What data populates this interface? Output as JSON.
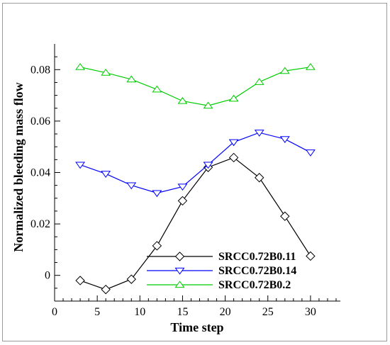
{
  "chart_data": {
    "type": "line",
    "xlabel": "Time step",
    "ylabel": "Normalized bleeding mass flow",
    "xlim": [
      0,
      33.5
    ],
    "ylim": [
      -0.01,
      0.09
    ],
    "xticks": [
      0,
      5,
      10,
      15,
      20,
      25,
      30
    ],
    "yticks": [
      0,
      0.02,
      0.04,
      0.06,
      0.08
    ],
    "ytick_labels": [
      "0",
      "0.02",
      "0.04",
      "0.06",
      "0.08"
    ],
    "grid": false,
    "legend_position": "bottom-center",
    "series": [
      {
        "name": "SRCC0.72B0.11",
        "color": "#000000",
        "marker": "diamond",
        "x": [
          3,
          6,
          9,
          12,
          15,
          18,
          21,
          24,
          27,
          30
        ],
        "y": [
          -0.002,
          -0.0055,
          -0.0015,
          0.0115,
          0.029,
          0.042,
          0.0458,
          0.038,
          0.023,
          0.0075
        ]
      },
      {
        "name": "SRCC0.72B0.14",
        "color": "#0000ff",
        "marker": "triangle-down",
        "x": [
          3,
          6,
          9,
          12,
          15,
          18,
          21,
          24,
          27,
          30
        ],
        "y": [
          0.043,
          0.0395,
          0.035,
          0.032,
          0.0345,
          0.043,
          0.0518,
          0.0555,
          0.053,
          0.0478
        ]
      },
      {
        "name": "SRCC0.72B0.2",
        "color": "#00cc00",
        "marker": "triangle-up",
        "x": [
          3,
          6,
          9,
          12,
          15,
          18,
          21,
          24,
          27,
          30
        ],
        "y": [
          0.081,
          0.0788,
          0.0762,
          0.0723,
          0.0678,
          0.066,
          0.0687,
          0.0752,
          0.0795,
          0.081
        ]
      }
    ]
  }
}
